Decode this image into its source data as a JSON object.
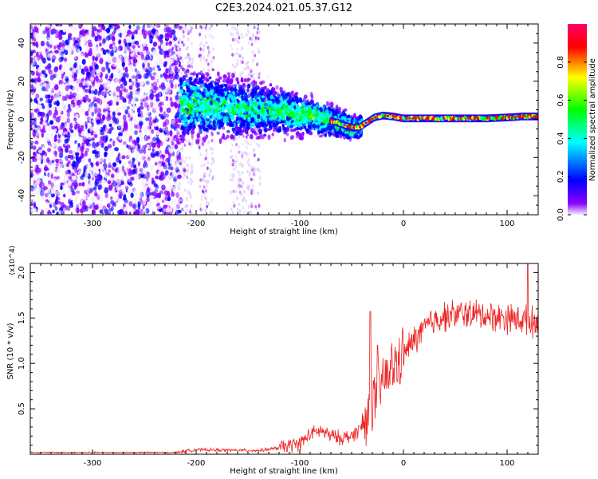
{
  "title": "C2E3.2024.021.05.37.G12",
  "chart_data": [
    {
      "type": "heatmap",
      "xlabel": "Height of straight line (km)",
      "ylabel": "Frequency (Hz)",
      "xlim": [
        -360,
        130
      ],
      "ylim": [
        -50,
        50
      ],
      "xticks": [
        -300,
        -200,
        -100,
        0,
        100
      ],
      "yticks": [
        -40,
        -20,
        0,
        20,
        40
      ],
      "colorbar": {
        "label": "Normalized spectral amplitude",
        "range": [
          0.0,
          1.0
        ],
        "ticks": [
          "0.0",
          "0.2",
          "0.4",
          "0.6",
          "0.8"
        ],
        "colors": [
          "#f4eefc",
          "#8a00ff",
          "#0000ff",
          "#00ffff",
          "#00ff00",
          "#ffff00",
          "#ff0000",
          "#ff0066"
        ]
      },
      "ridge": {
        "x": [
          -215,
          -190,
          -160,
          -130,
          -110,
          -90,
          -75,
          -62,
          -55,
          -48,
          -42,
          -35,
          -28,
          -20,
          -10,
          0,
          20,
          50,
          80,
          100,
          115,
          130
        ],
        "y": [
          8,
          7,
          6,
          5,
          3.5,
          2,
          0,
          -2,
          -3.5,
          -4.5,
          -4,
          -1.5,
          1,
          2,
          1.5,
          0.5,
          0.5,
          0.5,
          0.5,
          1,
          1.5,
          1.5
        ]
      },
      "grid": false
    },
    {
      "type": "line",
      "xlabel": "Height of straight line (km)",
      "ylabel": "SNR (10 * v/v)",
      "multiplier": "(x10^4)",
      "xlim": [
        -360,
        130
      ],
      "ylim": [
        0,
        2.1
      ],
      "xticks": [
        -300,
        -200,
        -100,
        0,
        100
      ],
      "yticks": [
        "0.5",
        "1.0",
        "1.5",
        "2.0"
      ],
      "series": [
        {
          "color": "#ee2222",
          "trend_x": [
            -360,
            -220,
            -200,
            -140,
            -120,
            -100,
            -90,
            -80,
            -70,
            -60,
            -50,
            -40,
            -30,
            -20,
            -10,
            0,
            10,
            20,
            30,
            40,
            60,
            80,
            100,
            115,
            130
          ],
          "trend_y": [
            0.02,
            0.02,
            0.05,
            0.04,
            0.07,
            0.12,
            0.22,
            0.26,
            0.2,
            0.18,
            0.2,
            0.3,
            0.55,
            0.8,
            0.95,
            1.1,
            1.25,
            1.38,
            1.48,
            1.52,
            1.55,
            1.53,
            1.5,
            1.48,
            1.45
          ],
          "spike_x": [
            -32,
            -25,
            120
          ],
          "spike_y": [
            1.57,
            1.2,
            2.08
          ]
        }
      ],
      "grid": false
    }
  ]
}
